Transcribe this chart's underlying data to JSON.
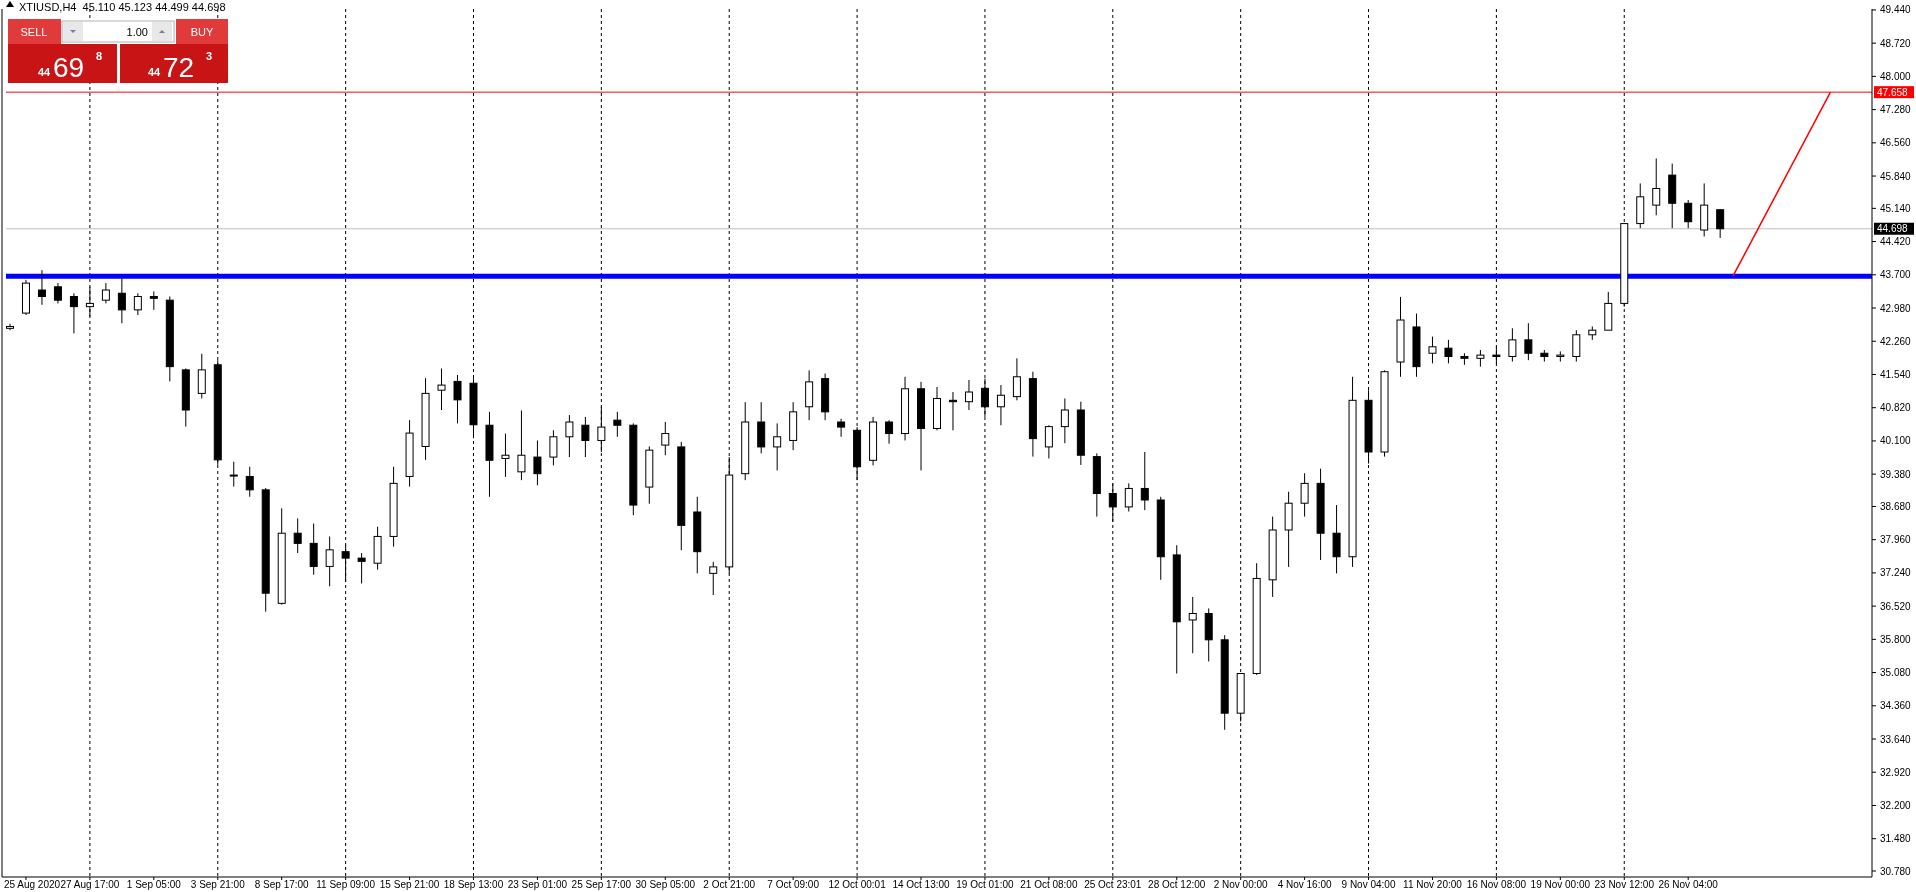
{
  "chart_data": {
    "type": "candlestick",
    "title": "XTIUSD,H4  45.110 45.123 44.499 44.698",
    "annotations": [
      "SELL",
      "1.00",
      "BUY",
      "44",
      "69",
      "8",
      "44",
      "72",
      "3"
    ],
    "categories": [
      null,
      "25 Aug 2020",
      null,
      null,
      null,
      "27 Aug 17:00",
      null,
      null,
      null,
      "1 Sep 05:00",
      null,
      null,
      null,
      "3 Sep 21:00",
      null,
      null,
      null,
      "8 Sep 17:00",
      null,
      null,
      null,
      "11 Sep 09:00",
      null,
      null,
      null,
      "15 Sep 21:00",
      null,
      null,
      null,
      "18 Sep 13:00",
      null,
      null,
      null,
      "23 Sep 01:00",
      null,
      null,
      null,
      "25 Sep 17:00",
      null,
      null,
      null,
      "30 Sep 05:00",
      null,
      null,
      null,
      "2 Oct 21:00",
      null,
      null,
      null,
      "7 Oct 09:00",
      null,
      null,
      null,
      "12 Oct 00:01",
      null,
      null,
      null,
      "14 Oct 13:00",
      null,
      null,
      null,
      "19 Oct 01:00",
      null,
      null,
      null,
      "21 Oct 08:00",
      null,
      null,
      null,
      "25 Oct 23:01",
      null,
      null,
      null,
      "28 Oct 12:00",
      null,
      null,
      null,
      "2 Nov 00:00",
      null,
      null,
      null,
      "4 Nov 16:00",
      null,
      null,
      null,
      "9 Nov 04:00",
      null,
      null,
      null,
      "11 Nov 20:00",
      null,
      null,
      null,
      "16 Nov 08:00",
      null,
      null,
      null,
      "19 Nov 00:00",
      null,
      null,
      null,
      "23 Nov 12:00",
      null,
      null,
      null,
      "26 Nov 04:00",
      null,
      null,
      null,
      null,
      null,
      null,
      null,
      null,
      null,
      null,
      null
    ],
    "ohlc": [
      [
        42.54,
        42.64,
        42.5,
        42.58
      ],
      [
        42.87,
        43.59,
        42.83,
        43.52
      ],
      [
        43.37,
        43.8,
        43.05,
        43.23
      ],
      [
        43.44,
        43.52,
        43.08,
        43.15
      ],
      [
        43.23,
        43.3,
        42.43,
        43.01
      ],
      [
        43.01,
        43.44,
        42.79,
        43.08
      ],
      [
        43.15,
        43.52,
        43.08,
        43.37
      ],
      [
        43.3,
        43.62,
        42.65,
        42.94
      ],
      [
        42.94,
        43.3,
        42.83,
        43.23
      ],
      [
        43.23,
        43.34,
        42.94,
        43.19
      ],
      [
        43.15,
        43.23,
        41.39,
        41.71
      ],
      [
        41.64,
        41.67,
        40.41,
        40.77
      ],
      [
        41.13,
        41.99,
        41.02,
        41.64
      ],
      [
        41.75,
        41.85,
        39.58,
        39.69
      ],
      [
        39.36,
        39.65,
        39.11,
        39.36
      ],
      [
        39.33,
        39.54,
        38.89,
        39.04
      ],
      [
        39.04,
        39.08,
        36.4,
        36.8
      ],
      [
        36.58,
        38.64,
        36.55,
        38.1
      ],
      [
        38.1,
        38.42,
        37.67,
        37.88
      ],
      [
        37.88,
        38.31,
        37.2,
        37.38
      ],
      [
        37.38,
        38.03,
        36.95,
        37.74
      ],
      [
        37.7,
        37.85,
        37.05,
        37.56
      ],
      [
        37.56,
        37.67,
        37.01,
        37.49
      ],
      [
        37.45,
        38.24,
        37.31,
        38.03
      ],
      [
        38.03,
        39.54,
        37.81,
        39.18
      ],
      [
        39.33,
        40.55,
        39.11,
        40.27
      ],
      [
        39.98,
        41.46,
        39.69,
        41.13
      ],
      [
        41.2,
        41.67,
        40.77,
        41.31
      ],
      [
        41.39,
        41.53,
        40.48,
        40.99
      ],
      [
        41.35,
        41.46,
        40.16,
        40.45
      ],
      [
        40.44,
        40.73,
        38.89,
        39.68
      ],
      [
        39.72,
        40.26,
        39.32,
        39.79
      ],
      [
        39.43,
        40.76,
        39.25,
        39.79
      ],
      [
        39.75,
        40.11,
        39.14,
        39.39
      ],
      [
        39.75,
        40.33,
        39.57,
        40.19
      ],
      [
        40.19,
        40.66,
        39.75,
        40.51
      ],
      [
        40.44,
        40.62,
        39.75,
        40.11
      ],
      [
        40.11,
        40.84,
        39.86,
        40.4
      ],
      [
        40.55,
        40.73,
        40.19,
        40.44
      ],
      [
        40.44,
        40.48,
        38.49,
        38.71
      ],
      [
        39.1,
        39.98,
        38.74,
        39.9
      ],
      [
        40.01,
        40.51,
        39.79,
        40.26
      ],
      [
        39.97,
        40.08,
        37.73,
        38.27
      ],
      [
        38.56,
        38.89,
        37.23,
        37.7
      ],
      [
        37.23,
        37.48,
        36.76,
        37.37
      ],
      [
        37.37,
        39.75,
        37.23,
        39.36
      ],
      [
        39.39,
        40.94,
        39.25,
        40.51
      ],
      [
        40.51,
        40.94,
        39.83,
        39.97
      ],
      [
        39.97,
        40.48,
        39.46,
        40.19
      ],
      [
        40.11,
        40.94,
        39.9,
        40.73
      ],
      [
        40.84,
        41.63,
        40.55,
        41.38
      ],
      [
        41.45,
        41.56,
        40.55,
        40.73
      ],
      [
        40.51,
        40.58,
        40.19,
        40.4
      ],
      [
        40.33,
        40.4,
        39.25,
        39.54
      ],
      [
        39.68,
        40.62,
        39.57,
        40.51
      ],
      [
        40.51,
        40.55,
        40.04,
        40.26
      ],
      [
        40.26,
        41.49,
        40.11,
        41.23
      ],
      [
        41.23,
        41.38,
        39.46,
        40.37
      ],
      [
        40.37,
        41.27,
        40.33,
        41.02
      ],
      [
        40.98,
        41.16,
        40.33,
        40.95
      ],
      [
        40.95,
        41.42,
        40.77,
        41.16
      ],
      [
        41.24,
        41.45,
        40.62,
        40.84
      ],
      [
        40.84,
        41.31,
        40.44,
        41.09
      ],
      [
        41.06,
        41.89,
        40.98,
        41.49
      ],
      [
        41.45,
        41.6,
        39.76,
        40.15
      ],
      [
        39.97,
        40.44,
        39.72,
        40.41
      ],
      [
        40.41,
        41.02,
        40.05,
        40.77
      ],
      [
        40.77,
        40.95,
        39.58,
        39.79
      ],
      [
        39.76,
        39.83,
        38.46,
        38.96
      ],
      [
        38.96,
        39.18,
        38.35,
        38.67
      ],
      [
        38.67,
        39.18,
        38.57,
        39.07
      ],
      [
        39.07,
        39.86,
        38.6,
        38.82
      ],
      [
        38.82,
        38.89,
        37.09,
        37.59
      ],
      [
        37.63,
        37.84,
        35.06,
        36.18
      ],
      [
        36.22,
        36.72,
        35.5,
        36.36
      ],
      [
        36.36,
        36.47,
        35.32,
        35.79
      ],
      [
        35.79,
        35.89,
        33.84,
        34.2
      ],
      [
        34.2,
        35.06,
        34.02,
        35.06
      ],
      [
        35.06,
        37.45,
        35.03,
        37.12
      ],
      [
        37.09,
        38.46,
        36.72,
        38.17
      ],
      [
        38.17,
        39.0,
        37.37,
        38.75
      ],
      [
        38.75,
        39.4,
        38.46,
        39.18
      ],
      [
        39.18,
        39.5,
        37.52,
        38.1
      ],
      [
        38.1,
        38.71,
        37.23,
        37.59
      ],
      [
        37.59,
        41.49,
        37.37,
        40.98
      ],
      [
        40.98,
        41.2,
        39.61,
        39.86
      ],
      [
        39.86,
        41.63,
        39.76,
        41.6
      ],
      [
        41.81,
        43.22,
        41.49,
        42.72
      ],
      [
        42.57,
        42.86,
        41.49,
        41.71
      ],
      [
        42.0,
        42.36,
        41.78,
        42.14
      ],
      [
        42.11,
        42.29,
        41.78,
        41.93
      ],
      [
        41.93,
        42.0,
        41.75,
        41.89
      ],
      [
        41.89,
        42.07,
        41.71,
        41.96
      ],
      [
        41.96,
        42.14,
        41.78,
        41.93
      ],
      [
        41.93,
        42.54,
        41.82,
        42.29
      ],
      [
        42.29,
        42.65,
        41.85,
        42.0
      ],
      [
        42.0,
        42.07,
        41.82,
        41.93
      ],
      [
        41.93,
        42.04,
        41.82,
        41.96
      ],
      [
        41.93,
        42.5,
        41.82,
        42.4
      ],
      [
        42.4,
        42.58,
        42.29,
        42.5
      ],
      [
        42.5,
        43.33,
        42.5,
        43.08
      ],
      [
        43.08,
        44.81,
        43.01,
        44.81
      ],
      [
        44.81,
        45.68,
        44.71,
        45.39
      ],
      [
        45.21,
        46.22,
        44.99,
        45.57
      ],
      [
        45.86,
        46.11,
        44.71,
        45.25
      ],
      [
        45.25,
        45.32,
        44.71,
        44.85
      ],
      [
        44.67,
        45.68,
        44.53,
        45.21
      ],
      [
        45.11,
        45.123,
        44.499,
        44.698
      ],
      null,
      null,
      null,
      null,
      null,
      null,
      null,
      null,
      null
    ],
    "ylim": [
      30.65,
      49.46
    ],
    "yticks": [
      {
        "value": 49.44,
        "label": "49.440"
      },
      {
        "value": 48.72,
        "label": "48.720"
      },
      {
        "value": 48.0,
        "label": "48.000"
      },
      {
        "value": 47.28,
        "label": "47.280"
      },
      {
        "value": 46.56,
        "label": "46.560"
      },
      {
        "value": 45.84,
        "label": "45.840"
      },
      {
        "value": 45.14,
        "label": "45.140"
      },
      {
        "value": 44.42,
        "label": "44.420"
      },
      {
        "value": 43.7,
        "label": "43.700"
      },
      {
        "value": 42.98,
        "label": "42.980"
      },
      {
        "value": 42.26,
        "label": "42.260"
      },
      {
        "value": 41.54,
        "label": "41.540"
      },
      {
        "value": 40.82,
        "label": "40.820"
      },
      {
        "value": 40.1,
        "label": "40.100"
      },
      {
        "value": 39.38,
        "label": "39.380"
      },
      {
        "value": 38.68,
        "label": "38.680"
      },
      {
        "value": 37.96,
        "label": "37.960"
      },
      {
        "value": 37.24,
        "label": "37.240"
      },
      {
        "value": 36.52,
        "label": "36.520"
      },
      {
        "value": 35.8,
        "label": "35.800"
      },
      {
        "value": 35.08,
        "label": "35.080"
      },
      {
        "value": 34.36,
        "label": "34.360"
      },
      {
        "value": 33.64,
        "label": "33.640"
      },
      {
        "value": 32.92,
        "label": "32.920"
      },
      {
        "value": 32.2,
        "label": "32.200"
      },
      {
        "value": 31.48,
        "label": "31.480"
      },
      {
        "value": 30.78,
        "label": "30.780"
      }
    ],
    "grid": "x",
    "ref_lines": [
      {
        "axis": "y",
        "value": 47.658,
        "label": "47.658",
        "color": "#ff0000"
      },
      {
        "axis": "y",
        "value": 44.698,
        "label": "44.698",
        "color": "#c0c0c0"
      },
      {
        "axis": "y",
        "value": 43.67,
        "color": "#0000ff"
      }
    ]
  }
}
